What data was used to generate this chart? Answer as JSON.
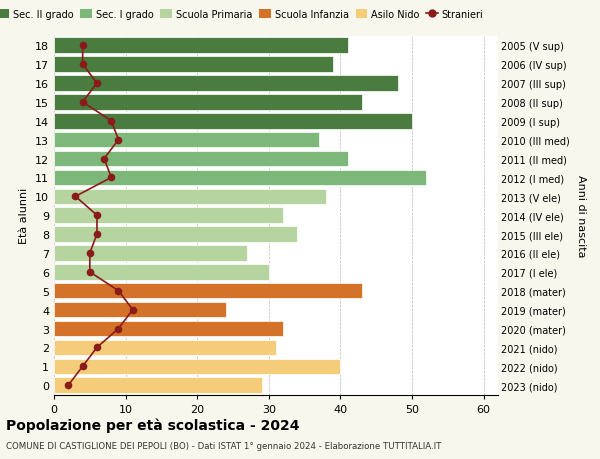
{
  "ages": [
    0,
    1,
    2,
    3,
    4,
    5,
    6,
    7,
    8,
    9,
    10,
    11,
    12,
    13,
    14,
    15,
    16,
    17,
    18
  ],
  "right_labels": [
    "2023 (nido)",
    "2022 (nido)",
    "2021 (nido)",
    "2020 (mater)",
    "2019 (mater)",
    "2018 (mater)",
    "2017 (I ele)",
    "2016 (II ele)",
    "2015 (III ele)",
    "2014 (IV ele)",
    "2013 (V ele)",
    "2012 (I med)",
    "2011 (II med)",
    "2010 (III med)",
    "2009 (I sup)",
    "2008 (II sup)",
    "2007 (III sup)",
    "2006 (IV sup)",
    "2005 (V sup)"
  ],
  "bar_values": [
    29,
    40,
    31,
    32,
    24,
    43,
    30,
    27,
    34,
    32,
    38,
    52,
    41,
    37,
    50,
    43,
    48,
    39,
    41
  ],
  "bar_colors": [
    "#f5cc7a",
    "#f5cc7a",
    "#f5cc7a",
    "#d4722a",
    "#d4722a",
    "#d4722a",
    "#b5d4a0",
    "#b5d4a0",
    "#b5d4a0",
    "#b5d4a0",
    "#b5d4a0",
    "#7db87a",
    "#7db87a",
    "#7db87a",
    "#4a7c3f",
    "#4a7c3f",
    "#4a7c3f",
    "#4a7c3f",
    "#4a7c3f"
  ],
  "stranieri_values": [
    2,
    4,
    6,
    9,
    11,
    9,
    5,
    5,
    6,
    6,
    3,
    8,
    7,
    9,
    8,
    4,
    6,
    4,
    4
  ],
  "stranieri_color": "#8b1a1a",
  "legend_labels": [
    "Sec. II grado",
    "Sec. I grado",
    "Scuola Primaria",
    "Scuola Infanzia",
    "Asilo Nido",
    "Stranieri"
  ],
  "legend_colors": [
    "#4a7c3f",
    "#7db87a",
    "#b5d4a0",
    "#d4722a",
    "#f5cc7a",
    "#8b1a1a"
  ],
  "title": "Popolazione per età scolastica - 2024",
  "subtitle": "COMUNE DI CASTIGLIONE DEI PEPOLI (BO) - Dati ISTAT 1° gennaio 2024 - Elaborazione TUTTITALIA.IT",
  "ylabel": "Età alunni",
  "right_ylabel": "Anni di nascita",
  "xlim": [
    0,
    62
  ],
  "background_color": "#f7f7ee",
  "bar_background": "#ffffff"
}
